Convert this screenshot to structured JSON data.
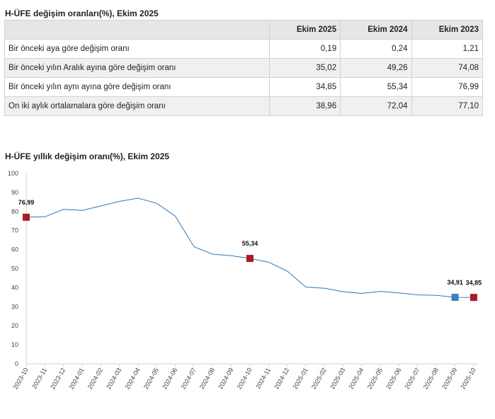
{
  "table": {
    "title": "H-ÜFE değişim oranları(%), Ekim 2025",
    "headers": [
      "",
      "Ekim 2025",
      "Ekim 2024",
      "Ekim 2023"
    ],
    "rows": [
      {
        "label": "Bir önceki aya göre değişim oranı",
        "values": [
          "0,19",
          "0,24",
          "1,21"
        ]
      },
      {
        "label": "Bir önceki yılın Aralık ayına göre değişim oranı",
        "values": [
          "35,02",
          "49,26",
          "74,08"
        ]
      },
      {
        "label": "Bir önceki yılın aynı ayına göre değişim oranı",
        "values": [
          "34,85",
          "55,34",
          "76,99"
        ]
      },
      {
        "label": "On iki aylık ortalamalara göre değişim oranı",
        "values": [
          "38,96",
          "72,04",
          "77,10"
        ]
      }
    ]
  },
  "chart_title": "H-ÜFE yıllık değişim oranı(%), Ekim 2025",
  "chart_data": {
    "type": "line",
    "title": "H-ÜFE yıllık değişim oranı(%), Ekim 2025",
    "xlabel": "",
    "ylabel": "",
    "ylim": [
      0,
      100
    ],
    "yticks": [
      0,
      10,
      20,
      30,
      40,
      50,
      60,
      70,
      80,
      90,
      100
    ],
    "grid": false,
    "line_color": "#2f78b8",
    "x": [
      "2023-10",
      "2023-11",
      "2023-12",
      "2024-01",
      "2024-02",
      "2024-03",
      "2024-04",
      "2024-05",
      "2024-06",
      "2024-07",
      "2024-08",
      "2024-09",
      "2024-10",
      "2024-11",
      "2024-12",
      "2025-01",
      "2025-02",
      "2025-03",
      "2025-04",
      "2025-05",
      "2025-06",
      "2025-07",
      "2025-08",
      "2025-09",
      "2025-10"
    ],
    "series": [
      {
        "values": [
          76.99,
          77.2,
          81.1,
          80.6,
          82.9,
          85.3,
          87.0,
          84.3,
          77.5,
          61.5,
          57.6,
          56.8,
          55.34,
          53.4,
          48.7,
          40.3,
          39.7,
          37.8,
          37.0,
          38.0,
          37.2,
          36.2,
          36.0,
          34.91,
          34.85
        ]
      }
    ],
    "highlights": [
      {
        "x": "2023-10",
        "value": 76.99,
        "label": "76,99",
        "color": "#a51c24"
      },
      {
        "x": "2024-10",
        "value": 55.34,
        "label": "55,34",
        "color": "#a51c24"
      },
      {
        "x": "2025-09",
        "value": 34.91,
        "label": "34,91",
        "color": "#3a7fc1"
      },
      {
        "x": "2025-10",
        "value": 34.85,
        "label": "34,85",
        "color": "#a51c24"
      }
    ]
  }
}
